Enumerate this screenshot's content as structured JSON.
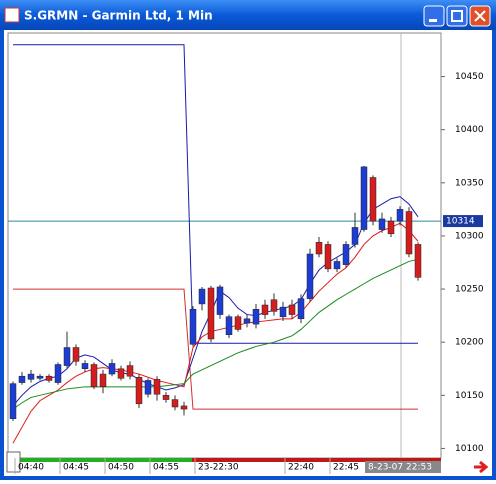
{
  "window_title": "S.GRMN - Garmin Ltd, 1 Min",
  "chart_data": {
    "type": "candlestick",
    "categories": [
      "04:40",
      null,
      null,
      null,
      null,
      "04:45",
      null,
      null,
      null,
      null,
      "04:50",
      null,
      null,
      null,
      null,
      "04:55",
      null,
      null,
      null,
      null,
      "23-22:30",
      null,
      null,
      null,
      null,
      null,
      null,
      null,
      null,
      null,
      "22:40",
      null,
      null,
      null,
      null,
      "22:45",
      null,
      null,
      null,
      null,
      null,
      null,
      null,
      null,
      null,
      null
    ],
    "open": [
      10128,
      10162,
      10165,
      10166,
      10168,
      10162,
      10178,
      10195,
      10175,
      10179,
      10170,
      10170,
      10175,
      10178,
      10167,
      10151,
      10165,
      10150,
      10146,
      10140,
      10198,
      10236,
      10251,
      10226,
      10207,
      10224,
      10218,
      10217,
      10235,
      10240,
      10224,
      10235,
      10222,
      10241,
      10294,
      10292,
      10269,
      10273,
      10292,
      10306,
      10355,
      10306,
      10314,
      10314,
      10323,
      10292
    ],
    "high": [
      10163,
      10172,
      10174,
      10170,
      10170,
      10181,
      10210,
      10198,
      10183,
      10181,
      10174,
      10184,
      10178,
      10182,
      10170,
      10166,
      10168,
      10153,
      10150,
      10144,
      10234,
      10252,
      10253,
      10254,
      10226,
      10226,
      10226,
      10236,
      10240,
      10246,
      10238,
      10240,
      10245,
      10288,
      10299,
      10295,
      10279,
      10295,
      10322,
      10366,
      10357,
      10322,
      10318,
      10328,
      10327,
      10294
    ],
    "low": [
      10126,
      10160,
      10162,
      10164,
      10162,
      10160,
      10176,
      10178,
      10172,
      10156,
      10152,
      10168,
      10164,
      10165,
      10138,
      10148,
      10145,
      10143,
      10136,
      10131,
      10196,
      10230,
      10200,
      10222,
      10204,
      10210,
      10214,
      10213,
      10222,
      10225,
      10220,
      10222,
      10218,
      10238,
      10280,
      10266,
      10266,
      10270,
      10289,
      10304,
      10310,
      10303,
      10299,
      10310,
      10280,
      10258
    ],
    "close": [
      10161,
      10168,
      10170,
      10168,
      10164,
      10179,
      10195,
      10182,
      10180,
      10158,
      10158,
      10180,
      10166,
      10168,
      10142,
      10164,
      10151,
      10146,
      10139,
      10137,
      10231,
      10250,
      10203,
      10252,
      10224,
      10212,
      10222,
      10231,
      10226,
      10229,
      10233,
      10226,
      10241,
      10283,
      10283,
      10269,
      10276,
      10292,
      10308,
      10365,
      10314,
      10316,
      10302,
      10325,
      10283,
      10261
    ],
    "up_color": "#1e3cd2",
    "down_color": "#d21e1e",
    "overlays": [
      {
        "color": "#1a1aa8",
        "values": [
          10480,
          10480,
          10480,
          10480,
          10480,
          10480,
          10480,
          10480,
          10480,
          10480,
          10480,
          10480,
          10480,
          10480,
          10480,
          10480,
          10480,
          10480,
          10480,
          10480,
          10199,
          10199,
          10199,
          10199,
          10199,
          10199,
          10199,
          10199,
          10199,
          10199,
          10199,
          10199,
          10199,
          10199,
          10199,
          10199,
          10199,
          10199,
          10199,
          10199,
          10199,
          10199,
          10199,
          10199,
          10199,
          10199
        ]
      },
      {
        "color": "#d03030",
        "values": [
          10250,
          10250,
          10250,
          10250,
          10250,
          10250,
          10250,
          10250,
          10250,
          10250,
          10250,
          10250,
          10250,
          10250,
          10250,
          10250,
          10250,
          10250,
          10250,
          10250,
          10137,
          10137,
          10137,
          10137,
          10137,
          10137,
          10137,
          10137,
          10137,
          10137,
          10137,
          10137,
          10137,
          10137,
          10137,
          10137,
          10137,
          10137,
          10137,
          10137,
          10137,
          10137,
          10137,
          10137,
          10137,
          10137
        ]
      },
      {
        "color": "#1a1ab0",
        "values": [
          10140,
          10150,
          10158,
          10163,
          10166,
          10168,
          10175,
          10185,
          10188,
          10186,
          10180,
          10174,
          10171,
          10170,
          10165,
          10161,
          10158,
          10155,
          10157,
          10160,
          10185,
          10210,
          10228,
          10248,
          10242,
          10232,
          10226,
          10225,
          10228,
          10230,
          10232,
          10234,
          10240,
          10255,
          10268,
          10275,
          10280,
          10285,
          10292,
          10312,
          10325,
          10330,
          10335,
          10337,
          10330,
          10318
        ]
      },
      {
        "color": "#e01818",
        "values": [
          10105,
          10120,
          10135,
          10145,
          10150,
          10155,
          10162,
          10168,
          10172,
          10175,
          10176,
          10175,
          10174,
          10172,
          10170,
          10167,
          10164,
          10162,
          10160,
          10158,
          10195,
          10205,
          10210,
          10212,
          10214,
          10216,
          10218,
          10219,
          10220,
          10221,
          10222,
          10222,
          10228,
          10238,
          10248,
          10256,
          10264,
          10270,
          10280,
          10292,
          10300,
          10305,
          10308,
          10312,
          10305,
          10295
        ]
      },
      {
        "color": "#1a8a1a",
        "values": [
          10137,
          10143,
          10148,
          10150,
          10152,
          10154,
          10156,
          10157,
          10158,
          10158,
          10158,
          10158,
          10158,
          10158,
          10158,
          10158,
          10158,
          10159,
          10160,
          10161,
          10170,
          10174,
          10178,
          10182,
          10186,
          10190,
          10193,
          10196,
          10198,
          10200,
          10203,
          10206,
          10212,
          10220,
          10228,
          10234,
          10240,
          10245,
          10250,
          10255,
          10260,
          10264,
          10268,
          10272,
          10276,
          10278
        ]
      }
    ],
    "price_line": 10314,
    "price_line_color": "#2a8aa0",
    "cursor_label": "8-23-07 22:53",
    "ylim": [
      10091,
      10491
    ],
    "yticks": [
      10100,
      10150,
      10200,
      10250,
      10300,
      10350,
      10400,
      10450
    ]
  }
}
